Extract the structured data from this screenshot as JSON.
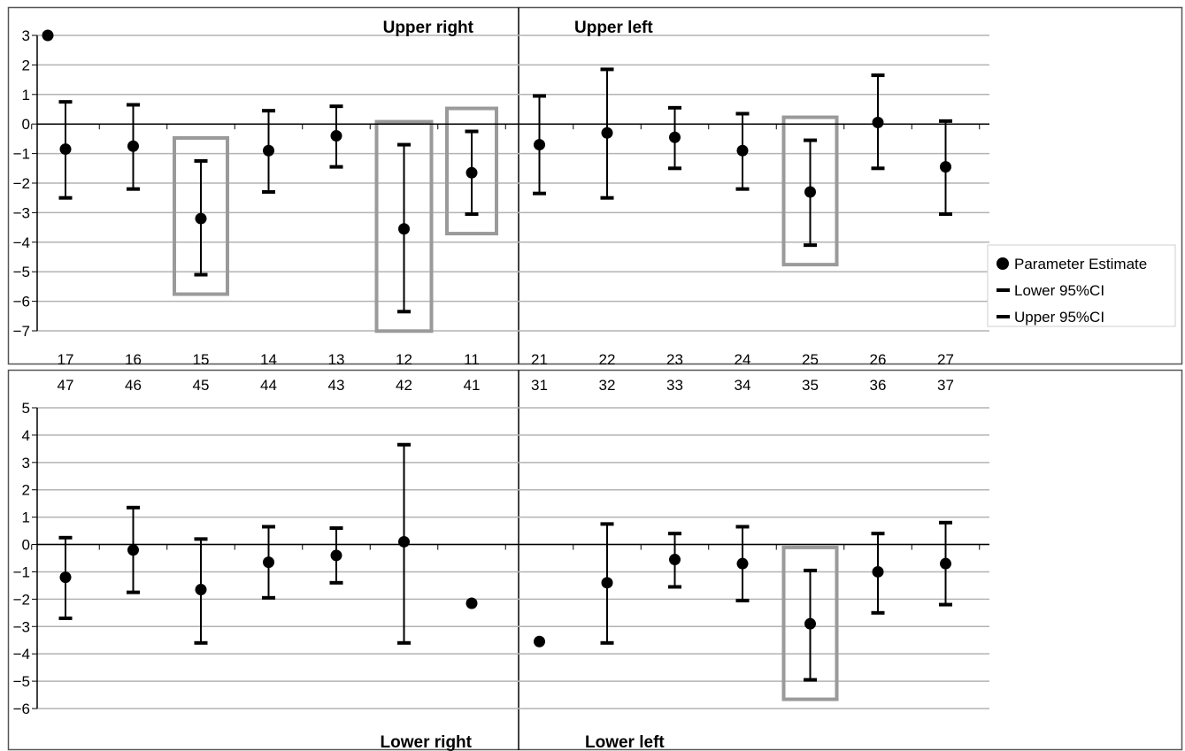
{
  "colors": {
    "marker": "#000000",
    "gridline": "#b3b3b3",
    "highlight_box": "#9a9a9a",
    "frame": "#555555"
  },
  "legend": [
    "Parameter Estimate",
    "Lower 95%CI",
    "Upper 95%CI"
  ],
  "chart_data": [
    {
      "type": "scatter",
      "panel": "upper",
      "quadrant_labels": [
        "Upper right",
        "Upper left"
      ],
      "categories": [
        "17",
        "16",
        "15",
        "14",
        "13",
        "12",
        "11",
        "21",
        "22",
        "23",
        "24",
        "25",
        "26",
        "27"
      ],
      "ylim": [
        -7,
        3
      ],
      "yticks": [
        3,
        2,
        1,
        0,
        -1,
        -2,
        -3,
        -4,
        -5,
        -6,
        -7
      ],
      "grid": true,
      "legend_position": "right",
      "series": [
        {
          "name": "Parameter Estimate",
          "values": [
            -0.85,
            -0.75,
            -3.2,
            -0.9,
            -0.4,
            -3.55,
            -1.65,
            -0.7,
            -0.3,
            -0.45,
            -0.9,
            -2.3,
            0.05,
            -1.45
          ]
        },
        {
          "name": "Lower 95%CI",
          "values": [
            -2.5,
            -2.2,
            -5.1,
            -2.3,
            -1.45,
            -6.35,
            -3.05,
            -2.35,
            -2.5,
            -1.5,
            -2.2,
            -4.1,
            -1.5,
            -3.05
          ]
        },
        {
          "name": "Upper 95%CI",
          "values": [
            0.75,
            0.65,
            -1.25,
            0.45,
            0.6,
            -0.7,
            -0.25,
            0.95,
            1.85,
            0.55,
            0.35,
            -0.55,
            1.65,
            0.1
          ]
        }
      ],
      "extra_points": [
        {
          "x_position": 0,
          "y": 3
        }
      ],
      "highlighted": [
        "15",
        "12",
        "11",
        "25"
      ]
    },
    {
      "type": "scatter",
      "panel": "lower",
      "quadrant_labels": [
        "Lower right",
        "Lower left"
      ],
      "categories": [
        "47",
        "46",
        "45",
        "44",
        "43",
        "42",
        "41",
        "31",
        "32",
        "33",
        "34",
        "35",
        "36",
        "37"
      ],
      "ylim": [
        -6,
        5
      ],
      "yticks": [
        5,
        4,
        3,
        2,
        1,
        0,
        -1,
        -2,
        -3,
        -4,
        -5,
        -6
      ],
      "grid": true,
      "series": [
        {
          "name": "Parameter Estimate",
          "values": [
            -1.2,
            -0.2,
            -1.65,
            -0.65,
            -0.4,
            0.1,
            -2.15,
            -3.55,
            -1.4,
            -0.55,
            -0.7,
            -2.9,
            -1.0,
            -0.7
          ]
        },
        {
          "name": "Lower 95%CI",
          "values": [
            -2.7,
            -1.75,
            -3.6,
            -1.95,
            -1.4,
            -3.6,
            null,
            null,
            -3.6,
            -1.55,
            -2.05,
            -4.95,
            -2.5,
            -2.2
          ]
        },
        {
          "name": "Upper 95%CI",
          "values": [
            0.25,
            1.35,
            0.2,
            0.65,
            0.6,
            3.65,
            null,
            null,
            0.75,
            0.4,
            0.65,
            -0.95,
            0.4,
            0.8
          ]
        }
      ],
      "highlighted": [
        "35"
      ]
    }
  ]
}
